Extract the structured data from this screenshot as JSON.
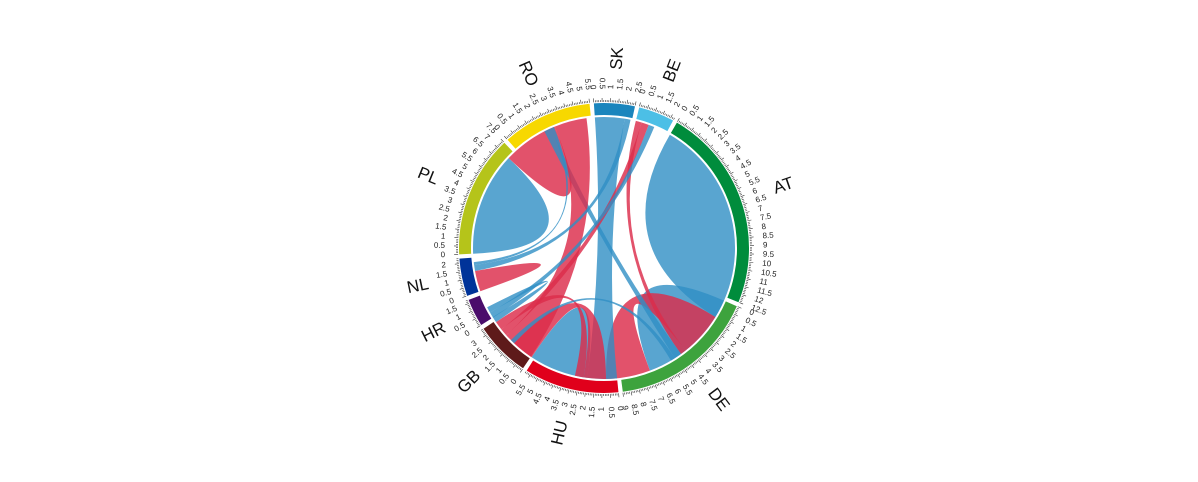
{
  "chart_data": {
    "type": "chord",
    "title": "",
    "sectors": [
      {
        "name": "SK",
        "total": 2.5,
        "color": "#1a85bd"
      },
      {
        "name": "BE",
        "total": 2.2,
        "color": "#4cbfe6"
      },
      {
        "name": "AT",
        "total": 12.5,
        "color": "#008c3c"
      },
      {
        "name": "DE",
        "total": 9.0,
        "color": "#3da33d"
      },
      {
        "name": "HU",
        "total": 5.8,
        "color": "#e0001b"
      },
      {
        "name": "GB",
        "total": 3.4,
        "color": "#5e1a1a"
      },
      {
        "name": "HR",
        "total": 1.7,
        "color": "#4a0d6b"
      },
      {
        "name": "NL",
        "total": 2.3,
        "color": "#003399"
      },
      {
        "name": "PL",
        "total": 7.5,
        "color": "#b5c41a"
      },
      {
        "name": "RO",
        "total": 5.5,
        "color": "#f7d800"
      }
    ],
    "flows": [
      {
        "from": "AT",
        "to": "AT",
        "value": 7.0,
        "type": "blue"
      },
      {
        "from": "DE",
        "to": "DE",
        "value": 3.5,
        "type": "blue"
      },
      {
        "from": "AT",
        "to": "DE",
        "value": 3.0,
        "type": "red"
      },
      {
        "from": "AT",
        "to": "BE",
        "value": 0.4,
        "type": "red"
      },
      {
        "from": "PL",
        "to": "PL",
        "value": 3.5,
        "type": "blue"
      },
      {
        "from": "PL",
        "to": "RO",
        "value": 3.0,
        "type": "red"
      },
      {
        "from": "PL",
        "to": "AT",
        "value": 0.5,
        "type": "blue"
      },
      {
        "from": "RO",
        "to": "GB",
        "value": 2.2,
        "type": "red"
      },
      {
        "from": "SK",
        "to": "HU",
        "value": 2.0,
        "type": "blue"
      },
      {
        "from": "HU",
        "to": "HU",
        "value": 2.0,
        "type": "blue"
      },
      {
        "from": "BE",
        "to": "GB",
        "value": 0.5,
        "type": "red"
      },
      {
        "from": "BE",
        "to": "HR",
        "value": 0.4,
        "type": "blue"
      },
      {
        "from": "DE",
        "to": "HU",
        "value": 1.5,
        "type": "red"
      },
      {
        "from": "DE",
        "to": "GB",
        "value": 0.6,
        "type": "red"
      },
      {
        "from": "NL",
        "to": "NL",
        "value": 0.7,
        "type": "red"
      },
      {
        "from": "NL",
        "to": "SK",
        "value": 0.4,
        "type": "blue"
      },
      {
        "from": "GB",
        "to": "HR",
        "value": 0.4,
        "type": "blue"
      },
      {
        "from": "PL",
        "to": "NL",
        "value": 0.2,
        "type": "blue"
      },
      {
        "from": "AT",
        "to": "HU",
        "value": 0.3,
        "type": "blue"
      }
    ],
    "ribbon_colors": {
      "blue": "#2f8fc4",
      "red": "#dc2c4a"
    },
    "grid": false,
    "legend": "none"
  }
}
